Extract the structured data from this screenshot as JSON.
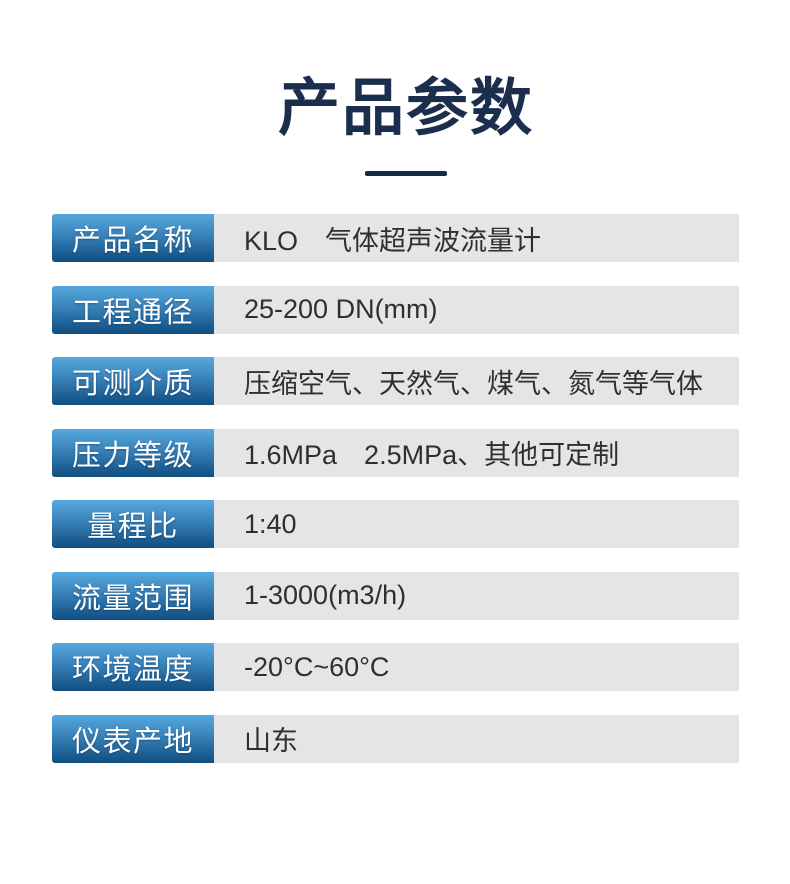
{
  "page": {
    "title": "产品参数"
  },
  "colors": {
    "title_color": "#1b2e4d",
    "underline_color": "#152c49",
    "badge_top": "#55a9de",
    "badge_bottom": "#114e7e",
    "row_bg": "#e5e5e5",
    "value_text": "#2f2f2f"
  },
  "rows": [
    {
      "label": "产品名称",
      "value": "KLO　气体超声波流量计"
    },
    {
      "label": "工程通径",
      "value": "25-200 DN(mm)"
    },
    {
      "label": "可测介质",
      "value": "压缩空气、天然气、煤气、氮气等气体"
    },
    {
      "label": "压力等级",
      "value": "1.6MPa　2.5MPa、其他可定制"
    },
    {
      "label": "量程比",
      "value": "1:40"
    },
    {
      "label": "流量范围",
      "value": "1-3000(m3/h)"
    },
    {
      "label": "环境温度",
      "value": "-20°C~60°C"
    },
    {
      "label": "仪表产地",
      "value": "山东"
    }
  ]
}
